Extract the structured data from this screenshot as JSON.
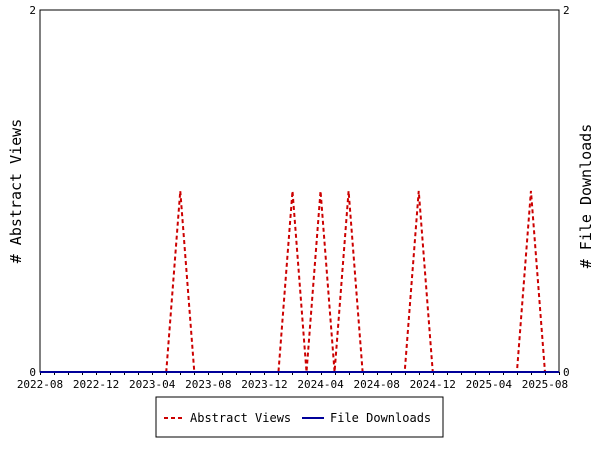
{
  "chart_data": {
    "type": "line",
    "x_start": "2022-08",
    "x_end": "2025-09",
    "x_ticks": [
      "2022-08",
      "2022-12",
      "2023-04",
      "2023-08",
      "2023-12",
      "2024-04",
      "2024-08",
      "2024-12",
      "2025-04",
      "2025-08"
    ],
    "y_left": {
      "label": "# Abstract Views",
      "ylim": [
        0,
        2
      ],
      "ticks": [
        "0",
        "2"
      ]
    },
    "y_right": {
      "label": "# File Downloads",
      "ylim": [
        0,
        2
      ],
      "ticks": [
        "0",
        "2"
      ]
    },
    "series": [
      {
        "name": "Abstract Views",
        "color": "#cc0000",
        "style": "dashed",
        "axis": "left",
        "points": [
          {
            "x": "2022-08",
            "y": 0
          },
          {
            "x": "2023-05",
            "y": 0
          },
          {
            "x": "2023-06",
            "y": 1
          },
          {
            "x": "2023-07",
            "y": 0
          },
          {
            "x": "2024-01",
            "y": 0
          },
          {
            "x": "2024-02",
            "y": 1
          },
          {
            "x": "2024-03",
            "y": 0
          },
          {
            "x": "2024-04",
            "y": 1
          },
          {
            "x": "2024-05",
            "y": 0
          },
          {
            "x": "2024-06",
            "y": 1
          },
          {
            "x": "2024-07",
            "y": 0
          },
          {
            "x": "2024-10",
            "y": 0
          },
          {
            "x": "2024-11",
            "y": 1
          },
          {
            "x": "2024-12",
            "y": 0
          },
          {
            "x": "2025-06",
            "y": 0
          },
          {
            "x": "2025-07",
            "y": 1
          },
          {
            "x": "2025-08",
            "y": 0
          },
          {
            "x": "2025-09",
            "y": 0
          }
        ]
      },
      {
        "name": "File Downloads",
        "color": "#000099",
        "style": "solid",
        "axis": "right",
        "points": [
          {
            "x": "2022-08",
            "y": 0
          },
          {
            "x": "2025-09",
            "y": 0
          }
        ]
      }
    ],
    "legend": {
      "position": "bottom"
    },
    "grid": false
  }
}
